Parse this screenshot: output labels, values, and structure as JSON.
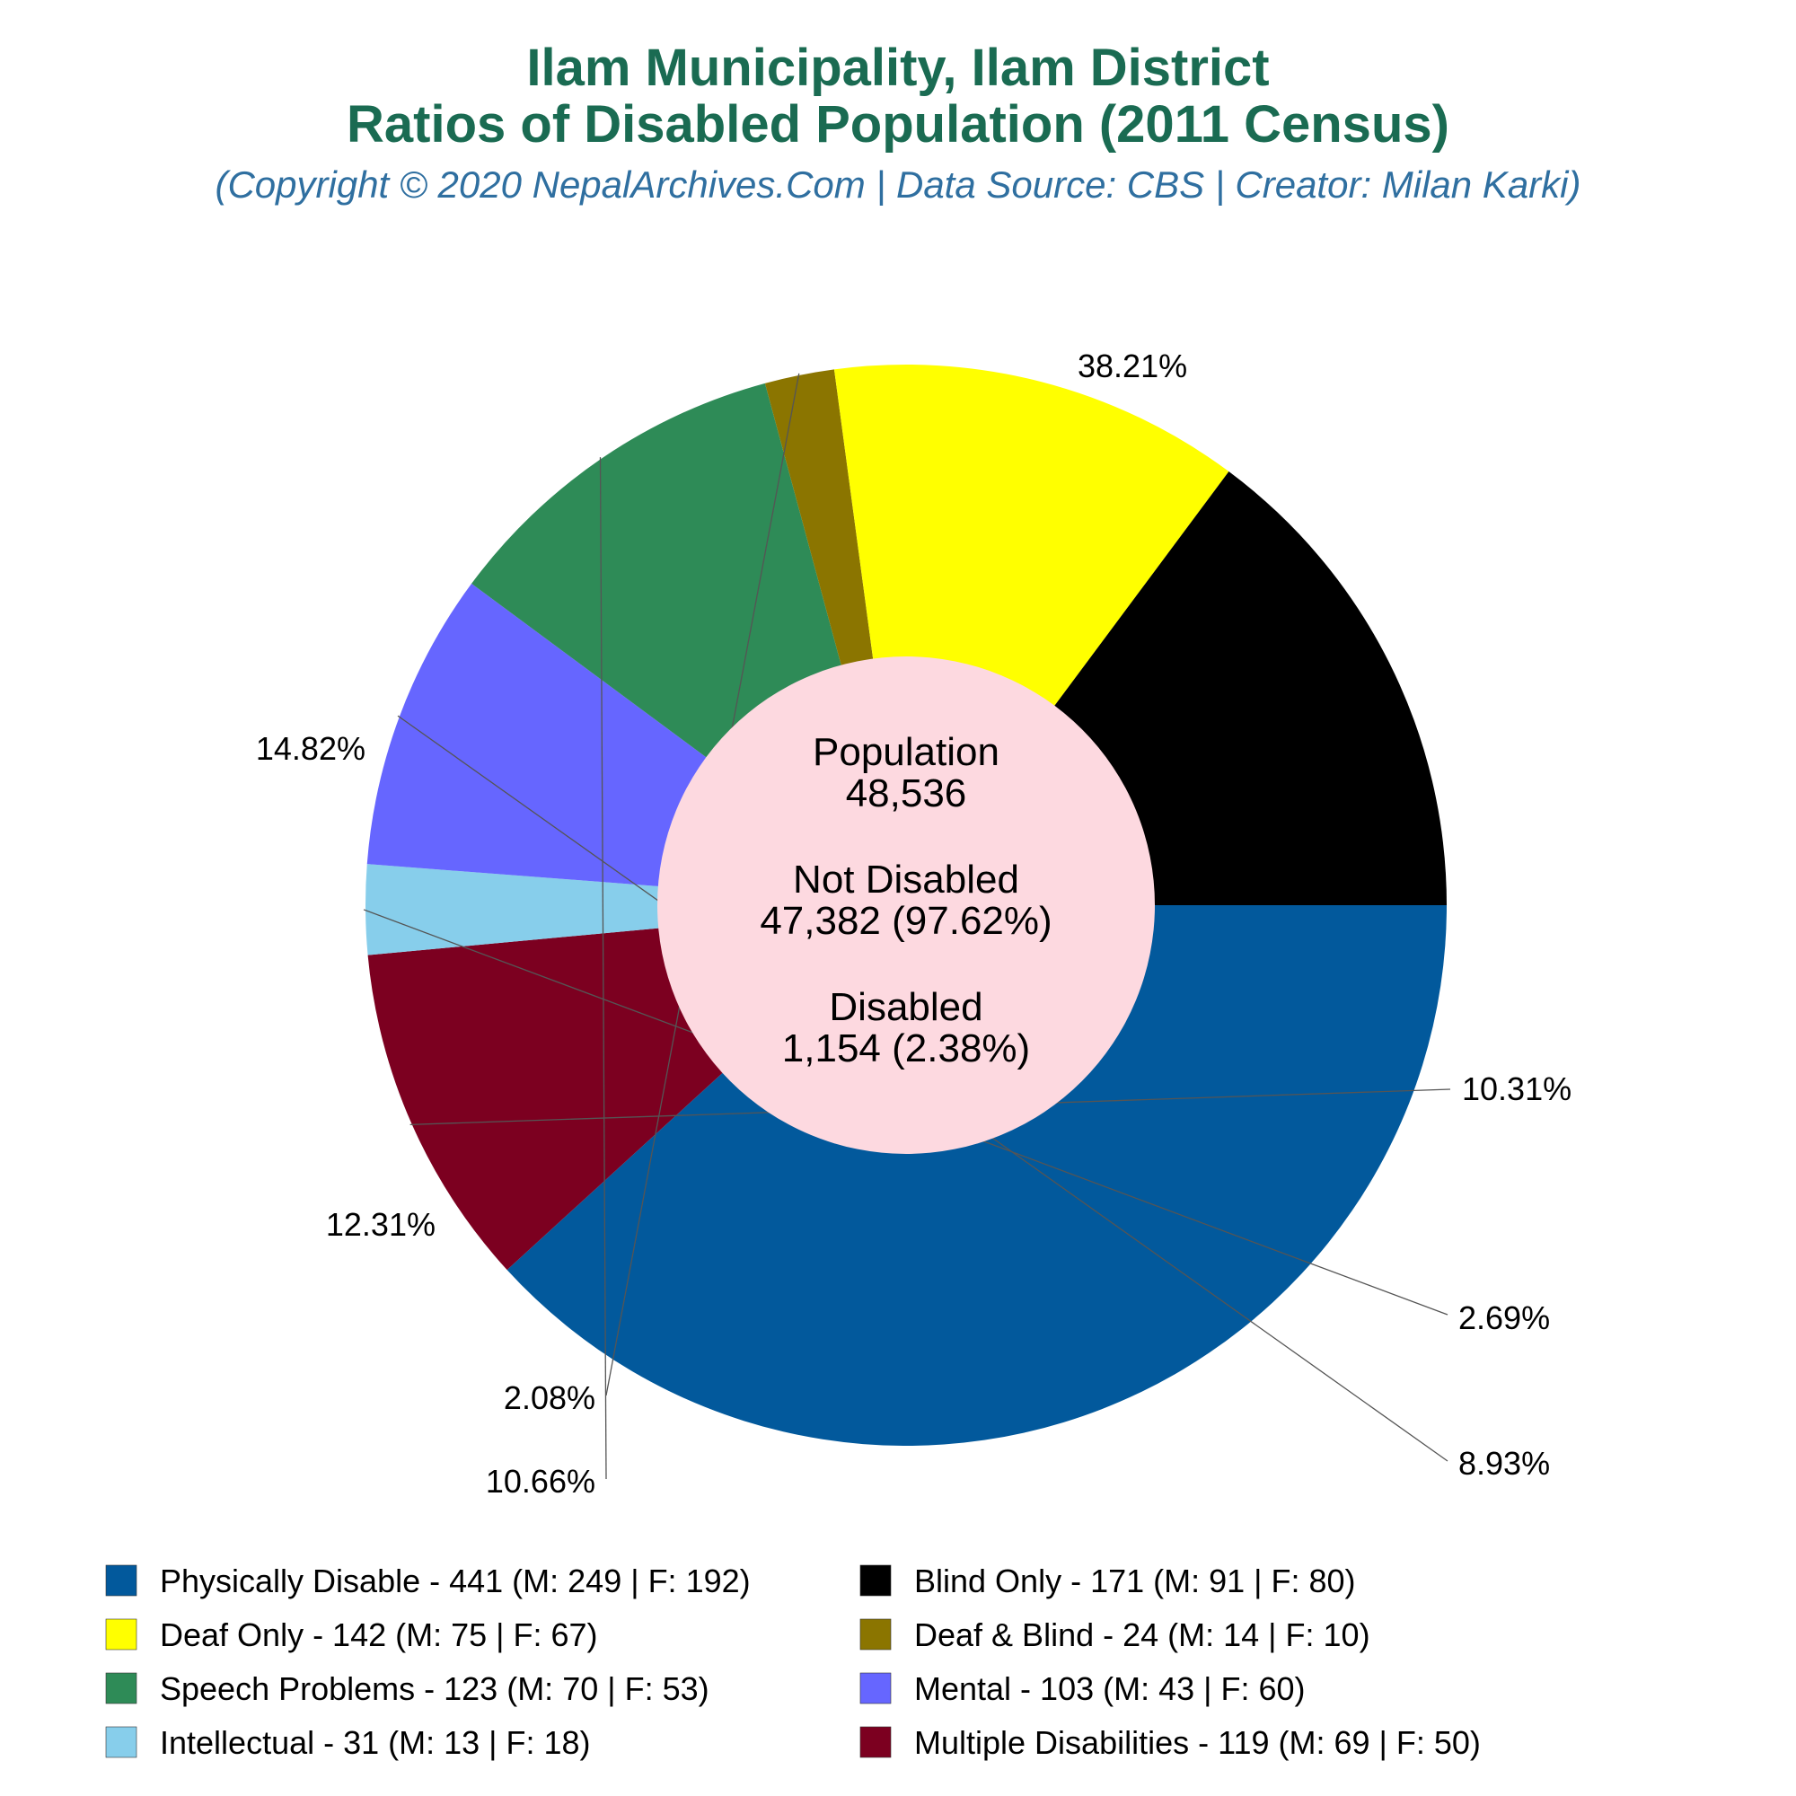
{
  "title_line1": "Ilam Municipality, Ilam District",
  "title_line2": "Ratios of Disabled Population (2011 Census)",
  "subtitle": "(Copyright © 2020 NepalArchives.Com | Data Source: CBS | Creator: Milan Karki)",
  "center": {
    "population_label": "Population",
    "population_value": "48,536",
    "not_disabled_label": "Not Disabled",
    "not_disabled_value": "47,382 (97.62%)",
    "disabled_label": "Disabled",
    "disabled_value": "1,154 (2.38%)"
  },
  "chart_data": {
    "type": "pie",
    "variant": "donut",
    "title": "Ilam Municipality, Ilam District Ratios of Disabled Population (2011 Census)",
    "slices": [
      {
        "name": "Physically Disable",
        "value": 441,
        "male": 249,
        "female": 192,
        "percent_label": "38.21%",
        "color": "#02599c",
        "legend_text": "Physically Disable - 441 (M: 249 | F: 192)"
      },
      {
        "name": "Multiple Disabilities",
        "value": 119,
        "male": 69,
        "female": 50,
        "percent_label": "10.31%",
        "color": "#7c0020",
        "legend_text": "Multiple Disabilities - 119 (M: 69 | F: 50)"
      },
      {
        "name": "Intellectual",
        "value": 31,
        "male": 13,
        "female": 18,
        "percent_label": "2.69%",
        "color": "#87ceeb",
        "legend_text": "Intellectual - 31 (M: 13 | F: 18)"
      },
      {
        "name": "Mental",
        "value": 103,
        "male": 43,
        "female": 60,
        "percent_label": "8.93%",
        "color": "#6666ff",
        "legend_text": "Mental - 103 (M: 43 | F: 60)"
      },
      {
        "name": "Speech Problems",
        "value": 123,
        "male": 70,
        "female": 53,
        "percent_label": "10.66%",
        "color": "#2e8b57",
        "legend_text": "Speech Problems - 123 (M: 70 | F: 53)"
      },
      {
        "name": "Deaf & Blind",
        "value": 24,
        "male": 14,
        "female": 10,
        "percent_label": "2.08%",
        "color": "#8b7500",
        "legend_text": "Deaf & Blind - 24 (M: 14 | F: 10)"
      },
      {
        "name": "Deaf Only",
        "value": 142,
        "male": 75,
        "female": 67,
        "percent_label": "12.31%",
        "color": "#ffff00",
        "legend_text": "Deaf Only - 142 (M: 75 | F: 67)"
      },
      {
        "name": "Blind Only",
        "value": 171,
        "male": 91,
        "female": 80,
        "percent_label": "14.82%",
        "color": "#000000",
        "legend_text": "Blind Only - 171 (M: 91 | F: 80)"
      }
    ],
    "legend_order": [
      "Physically Disable",
      "Blind Only",
      "Deaf Only",
      "Deaf & Blind",
      "Speech Problems",
      "Mental",
      "Intellectual",
      "Multiple Disabilities"
    ],
    "center_color": "#fdd9e0",
    "legend_position": "bottom"
  }
}
